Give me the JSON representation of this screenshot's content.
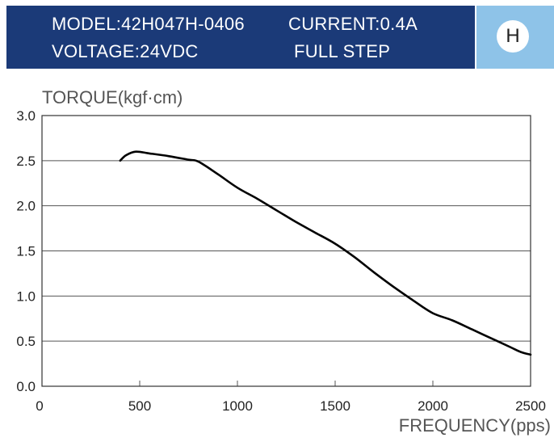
{
  "header": {
    "model": "MODEL:42H047H-0406",
    "current": "CURRENT:0.4A",
    "voltage": "VOLTAGE:24VDC",
    "step": "FULL STEP",
    "badge": "H",
    "colors": {
      "banner": "#1b3a78",
      "badge_panel": "#8ec3e8"
    }
  },
  "chart_data": {
    "type": "line",
    "ylabel": "TORQUE(kgf·cm)",
    "xlabel": "FREQUENCY(pps)",
    "xlim": [
      0,
      2500
    ],
    "ylim": [
      0,
      3.0
    ],
    "xticks": [
      0,
      500,
      1000,
      1500,
      2000,
      2500
    ],
    "yticks": [
      0.0,
      0.5,
      1.0,
      1.5,
      2.0,
      2.5,
      3.0
    ],
    "ytick_labels": [
      "0.0",
      "0.5",
      "1.0",
      "1.5",
      "2.0",
      "2.5",
      "3.0"
    ],
    "grid": "horizontal",
    "series": [
      {
        "color": "#000000",
        "x": [
          400,
          430,
          480,
          550,
          650,
          750,
          800,
          900,
          1000,
          1100,
          1200,
          1300,
          1400,
          1500,
          1600,
          1700,
          1800,
          1900,
          2000,
          2100,
          2200,
          2300,
          2400,
          2450,
          2500
        ],
        "y": [
          2.5,
          2.56,
          2.6,
          2.58,
          2.55,
          2.51,
          2.49,
          2.35,
          2.2,
          2.08,
          1.95,
          1.82,
          1.7,
          1.58,
          1.43,
          1.26,
          1.1,
          0.95,
          0.81,
          0.73,
          0.63,
          0.53,
          0.43,
          0.38,
          0.35
        ]
      }
    ]
  }
}
